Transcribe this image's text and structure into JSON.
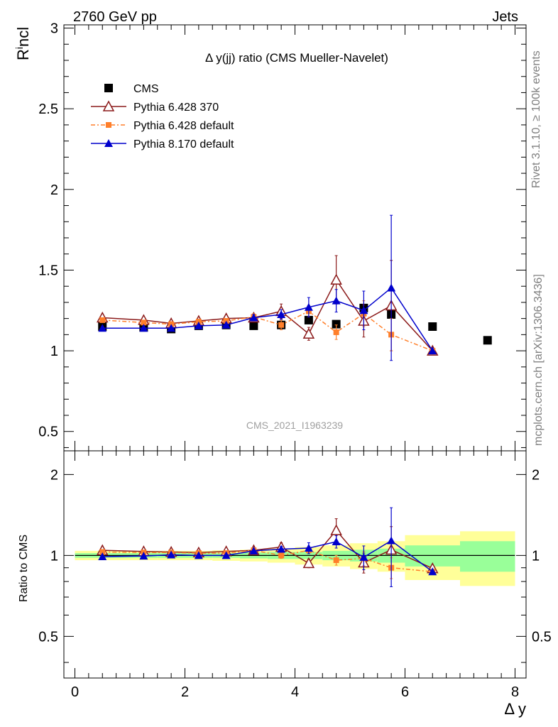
{
  "header": {
    "energy": "2760 GeV pp",
    "process": "Jets"
  },
  "side": {
    "rivet": "Rivet 3.1.10, ≥ 100k events",
    "mcplots": "mcplots.cern.ch [arXiv:1306.3436]"
  },
  "watermark": "CMS_2021_I1963239",
  "chart_data": [
    {
      "type": "scatter",
      "title": "Δ y(jj) ratio (CMS Mueller-Navelet)",
      "ylabel": "R^incl",
      "xlim": [
        -0.2,
        8.2
      ],
      "ylim": [
        0.38,
        3.02
      ],
      "yticks": [
        0.5,
        1,
        1.5,
        2,
        2.5,
        3
      ],
      "ytick_labels": [
        "0.5",
        "1",
        "1.5",
        "2",
        "2.5",
        "3"
      ],
      "legend_position": "top-left",
      "series": [
        {
          "name": "CMS",
          "color": "#000000",
          "marker": "square",
          "x": [
            0.5,
            1.25,
            1.75,
            2.25,
            2.75,
            3.25,
            3.75,
            4.25,
            4.75,
            5.25,
            5.75,
            6.5,
            7.5
          ],
          "y": [
            1.15,
            1.145,
            1.135,
            1.155,
            1.16,
            1.155,
            1.16,
            1.19,
            1.165,
            1.265,
            1.225,
            1.15,
            1.065
          ]
        },
        {
          "name": "Pythia 6.428 370",
          "color": "#8b1a1a",
          "marker": "open-triangle",
          "x": [
            0.5,
            1.25,
            1.75,
            2.25,
            2.75,
            3.25,
            3.75,
            4.25,
            4.75,
            5.25,
            5.75,
            6.5
          ],
          "y": [
            1.205,
            1.19,
            1.17,
            1.185,
            1.2,
            1.205,
            1.245,
            1.105,
            1.44,
            1.185,
            1.28,
            1.0
          ],
          "err": [
            0.012,
            0.01,
            0.01,
            0.012,
            0.015,
            0.02,
            0.045,
            0.04,
            0.15,
            0.1,
            0.28,
            0.0
          ]
        },
        {
          "name": "Pythia 6.428 default",
          "color": "#ff7f2a",
          "marker": "filled-square",
          "x": [
            0.5,
            1.25,
            1.75,
            2.25,
            2.75,
            3.25,
            3.75,
            4.25,
            4.75,
            5.25,
            5.75,
            6.5
          ],
          "y": [
            1.19,
            1.175,
            1.165,
            1.18,
            1.185,
            1.21,
            1.16,
            1.245,
            1.115,
            1.23,
            1.1,
            1.0
          ],
          "err": [
            0.01,
            0.01,
            0.01,
            0.01,
            0.015,
            0.02,
            0.03,
            0.035,
            0.045,
            0.08,
            0.1,
            0.0
          ]
        },
        {
          "name": "Pythia 8.170 default",
          "color": "#0000cc",
          "marker": "filled-triangle",
          "x": [
            0.5,
            1.25,
            1.75,
            2.25,
            2.75,
            3.25,
            3.75,
            4.25,
            4.75,
            5.25,
            5.75,
            6.5
          ],
          "y": [
            1.14,
            1.14,
            1.14,
            1.155,
            1.16,
            1.205,
            1.225,
            1.27,
            1.31,
            1.25,
            1.39,
            1.0
          ],
          "err": [
            0.008,
            0.008,
            0.008,
            0.01,
            0.012,
            0.02,
            0.03,
            0.06,
            0.07,
            0.12,
            0.45,
            0.0
          ]
        }
      ]
    },
    {
      "type": "scatter",
      "xlabel": "Δ y",
      "ylabel": "Ratio to CMS",
      "xlim": [
        -0.2,
        8.2
      ],
      "ylim": [
        0.35,
        2.45
      ],
      "xticks": [
        0,
        2,
        4,
        6,
        8
      ],
      "xtick_labels": [
        "0",
        "2",
        "4",
        "6",
        "8"
      ],
      "yticks": [
        0.5,
        1,
        2
      ],
      "ytick_labels": [
        "0.5",
        "1",
        "2"
      ],
      "uncertainty_bands": {
        "edges": [
          0,
          1,
          1.5,
          2,
          2.5,
          3,
          3.5,
          4,
          4.5,
          5,
          5.5,
          6,
          7,
          8
        ],
        "stat_half_width": [
          0.02,
          0.02,
          0.02,
          0.02,
          0.02,
          0.025,
          0.03,
          0.03,
          0.04,
          0.05,
          0.06,
          0.09,
          0.13
        ],
        "total_half_width": [
          0.04,
          0.04,
          0.04,
          0.04,
          0.045,
          0.05,
          0.06,
          0.075,
          0.09,
          0.11,
          0.13,
          0.19,
          0.23
        ],
        "stat_color": "#99ff99",
        "total_color": "#ffff99"
      },
      "series": [
        {
          "name": "Pythia 6.428 370",
          "color": "#8b1a1a",
          "marker": "open-triangle",
          "x": [
            0.5,
            1.25,
            1.75,
            2.25,
            2.75,
            3.25,
            3.75,
            4.25,
            4.75,
            5.25,
            5.75,
            6.5
          ],
          "y": [
            1.045,
            1.035,
            1.03,
            1.025,
            1.035,
            1.045,
            1.075,
            0.935,
            1.24,
            0.94,
            1.05,
            0.895
          ],
          "err": [
            0.01,
            0.01,
            0.01,
            0.01,
            0.012,
            0.018,
            0.04,
            0.035,
            0.13,
            0.08,
            0.23,
            0.0
          ]
        },
        {
          "name": "Pythia 6.428 default",
          "color": "#ff7f2a",
          "marker": "filled-square",
          "x": [
            0.5,
            1.25,
            1.75,
            2.25,
            2.75,
            3.25,
            3.75,
            4.25,
            4.75,
            5.25,
            5.75,
            6.5
          ],
          "y": [
            1.03,
            1.025,
            1.025,
            1.02,
            1.02,
            1.045,
            1.0,
            1.045,
            0.96,
            0.975,
            0.9,
            0.87
          ],
          "err": [
            0.01,
            0.01,
            0.01,
            0.01,
            0.012,
            0.018,
            0.025,
            0.03,
            0.04,
            0.06,
            0.08,
            0.0
          ]
        },
        {
          "name": "Pythia 8.170 default",
          "color": "#0000cc",
          "marker": "filled-triangle",
          "x": [
            0.5,
            1.25,
            1.75,
            2.25,
            2.75,
            3.25,
            3.75,
            4.25,
            4.75,
            5.25,
            5.75,
            6.5
          ],
          "y": [
            0.99,
            0.995,
            1.005,
            1.0,
            1.0,
            1.04,
            1.055,
            1.065,
            1.125,
            0.985,
            1.135,
            0.87
          ],
          "err": [
            0.008,
            0.008,
            0.008,
            0.01,
            0.01,
            0.018,
            0.025,
            0.05,
            0.06,
            0.1,
            0.37,
            0.0
          ]
        }
      ]
    }
  ]
}
